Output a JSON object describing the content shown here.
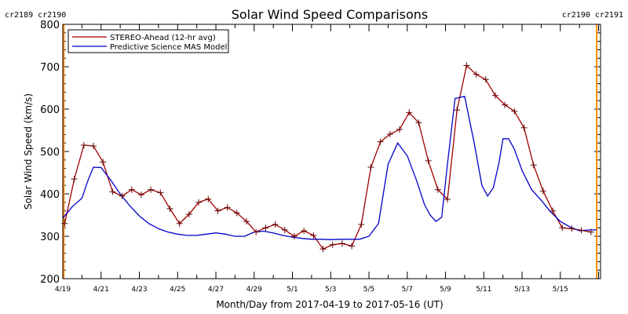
{
  "chart_data": {
    "type": "line",
    "title": "Solar Wind Speed Comparisons",
    "xlabel": "Month/Day from 2017-04-19 to 2017-05-16 (UT)",
    "ylabel": "Solar Wind Speed (km/s)",
    "ylim": [
      200,
      800
    ],
    "xlim_days": [
      0,
      28.1
    ],
    "x_ticks": [
      "4/19",
      "4/21",
      "4/23",
      "4/25",
      "4/27",
      "4/29",
      "5/1",
      "5/3",
      "5/5",
      "5/7",
      "5/9",
      "5/11",
      "5/13",
      "5/15"
    ],
    "y_ticks": [
      "200",
      "300",
      "400",
      "500",
      "600",
      "700",
      "800"
    ],
    "legend_position": "top-left",
    "carrington": {
      "left_label": "cr2189 cr2190",
      "right_label": "cr2190 cr2191",
      "color": "#ff8c00",
      "left_day": 0.05,
      "right_day": 27.9
    },
    "series": [
      {
        "name": "STEREO-Ahead (12-hr avg)",
        "color": "#a00000",
        "marker": "+",
        "x": [
          0.1,
          0.6,
          1.1,
          1.6,
          2.1,
          2.6,
          3.1,
          3.6,
          4.1,
          4.6,
          5.1,
          5.6,
          6.1,
          6.6,
          7.1,
          7.6,
          8.1,
          8.6,
          9.1,
          9.6,
          10.1,
          10.6,
          11.1,
          11.6,
          12.1,
          12.6,
          13.1,
          13.6,
          14.1,
          14.6,
          15.1,
          15.6,
          16.1,
          16.6,
          17.1,
          17.6,
          18.1,
          18.6,
          19.1,
          19.6,
          20.1,
          20.6,
          21.1,
          21.6,
          22.1,
          22.6,
          23.1,
          23.6,
          24.1,
          24.6,
          25.1,
          25.6,
          26.1,
          26.6,
          27.1,
          27.6
        ],
        "y": [
          330,
          435,
          515,
          513,
          475,
          405,
          395,
          410,
          398,
          410,
          403,
          365,
          330,
          352,
          380,
          388,
          360,
          368,
          355,
          335,
          310,
          320,
          328,
          315,
          300,
          313,
          302,
          270,
          280,
          283,
          277,
          328,
          463,
          523,
          541,
          552,
          592,
          568,
          478,
          410,
          387,
          598,
          703,
          682,
          670,
          632,
          610,
          595,
          556,
          468,
          407,
          360,
          320,
          318,
          314,
          310
        ]
      },
      {
        "name": "Predictive Science MAS Model",
        "color": "#0000c8",
        "marker": "none",
        "x": [
          0.0,
          0.5,
          1.0,
          1.3,
          1.6,
          2.0,
          2.5,
          3.0,
          3.5,
          4.0,
          4.5,
          5.0,
          5.5,
          6.0,
          6.5,
          7.0,
          7.5,
          8.0,
          8.5,
          9.0,
          9.5,
          10.0,
          10.5,
          11.0,
          11.5,
          12.0,
          12.5,
          13.0,
          13.5,
          14.0,
          14.5,
          15.0,
          15.5,
          16.0,
          16.5,
          17.0,
          17.5,
          18.0,
          18.5,
          18.9,
          19.2,
          19.5,
          19.8,
          20.1,
          20.5,
          21.0,
          21.5,
          21.9,
          22.2,
          22.5,
          22.8,
          23.0,
          23.3,
          23.6,
          24.0,
          24.5,
          25.0,
          25.5,
          26.0,
          26.5,
          27.0,
          27.5,
          27.9
        ],
        "y": [
          343,
          370,
          390,
          430,
          463,
          462,
          433,
          400,
          372,
          348,
          330,
          318,
          310,
          305,
          302,
          302,
          305,
          308,
          305,
          300,
          300,
          310,
          312,
          308,
          302,
          298,
          295,
          293,
          293,
          292,
          293,
          293,
          293,
          300,
          330,
          470,
          520,
          490,
          430,
          375,
          350,
          335,
          345,
          470,
          625,
          630,
          520,
          420,
          395,
          415,
          475,
          530,
          530,
          505,
          455,
          410,
          385,
          357,
          335,
          322,
          313,
          315,
          315
        ]
      }
    ]
  }
}
